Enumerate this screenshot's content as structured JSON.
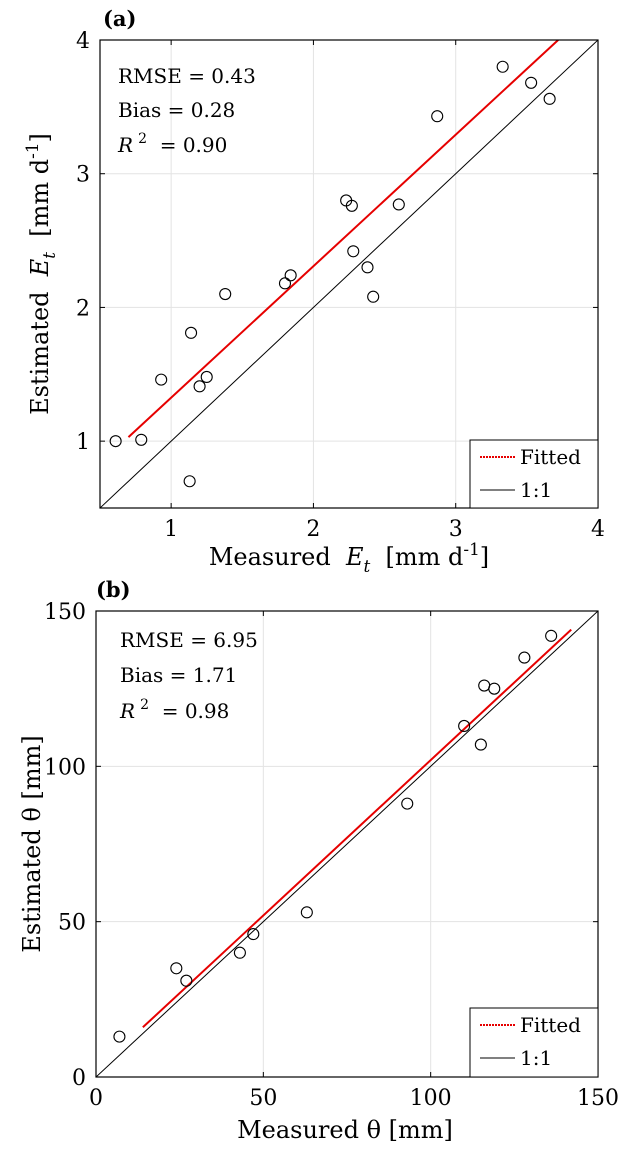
{
  "chart_data": [
    {
      "type": "scatter",
      "panel_label": "(a)",
      "xlabel": "Measured  E_t  [mm d^-1]",
      "ylabel": "Estimated  E_t  [mm d^-1]",
      "xlim": [
        0.5,
        4
      ],
      "ylim": [
        0.5,
        4
      ],
      "x_ticks": [
        1,
        2,
        3,
        4
      ],
      "y_ticks": [
        1,
        2,
        3,
        4
      ],
      "grid": true,
      "legend_position": "bottom-right",
      "stats": [
        "RMSE = 0.43",
        "Bias = 0.28",
        "R^2 = 0.90"
      ],
      "series": [
        {
          "name": "",
          "kind": "scatter",
          "marker": "open-circle",
          "color": "#000000",
          "x": [
            0.61,
            0.79,
            0.93,
            1.13,
            1.14,
            1.2,
            1.25,
            1.38,
            1.8,
            1.84,
            2.23,
            2.27,
            2.28,
            2.38,
            2.42,
            2.6,
            2.87,
            3.33,
            3.53,
            3.66
          ],
          "y": [
            1.0,
            1.01,
            1.46,
            0.7,
            1.81,
            1.41,
            1.48,
            2.1,
            2.18,
            2.24,
            2.8,
            2.76,
            2.42,
            2.3,
            2.08,
            2.77,
            3.43,
            3.8,
            3.68,
            3.56
          ]
        },
        {
          "name": "Fitted",
          "kind": "line",
          "style": "solid-red",
          "color": "#e60000",
          "x": [
            0.7,
            3.72
          ],
          "y": [
            1.03,
            4.0
          ]
        },
        {
          "name": "1:1",
          "kind": "line",
          "style": "solid-black",
          "color": "#000000",
          "x": [
            0.5,
            4.0
          ],
          "y": [
            0.5,
            4.0
          ]
        }
      ],
      "legend": [
        {
          "label": "Fitted",
          "color": "#e60000"
        },
        {
          "label": "1:1",
          "color": "#000000"
        }
      ]
    },
    {
      "type": "scatter",
      "panel_label": "(b)",
      "xlabel": "Measured θ [mm]",
      "ylabel": "Estimated θ [mm]",
      "xlim": [
        0,
        150
      ],
      "ylim": [
        0,
        150
      ],
      "x_ticks": [
        0,
        50,
        100,
        150
      ],
      "y_ticks": [
        0,
        50,
        100,
        150
      ],
      "grid": true,
      "legend_position": "bottom-right",
      "stats": [
        "RMSE = 6.95",
        "Bias = 1.71",
        "R^2 = 0.98"
      ],
      "series": [
        {
          "name": "",
          "kind": "scatter",
          "marker": "open-circle",
          "color": "#000000",
          "x": [
            7,
            24,
            27,
            43,
            47,
            63,
            93,
            110,
            115,
            116,
            119,
            128,
            136
          ],
          "y": [
            13,
            35,
            31,
            40,
            46,
            53,
            88,
            113,
            107,
            126,
            125,
            135,
            142
          ]
        },
        {
          "name": "Fitted",
          "kind": "line",
          "style": "solid-red",
          "color": "#e60000",
          "x": [
            14,
            142
          ],
          "y": [
            16,
            144
          ]
        },
        {
          "name": "1:1",
          "kind": "line",
          "style": "solid-black",
          "color": "#000000",
          "x": [
            0,
            150
          ],
          "y": [
            0,
            150
          ]
        }
      ],
      "legend": [
        {
          "label": "Fitted",
          "color": "#e60000"
        },
        {
          "label": "1:1",
          "color": "#000000"
        }
      ]
    }
  ]
}
